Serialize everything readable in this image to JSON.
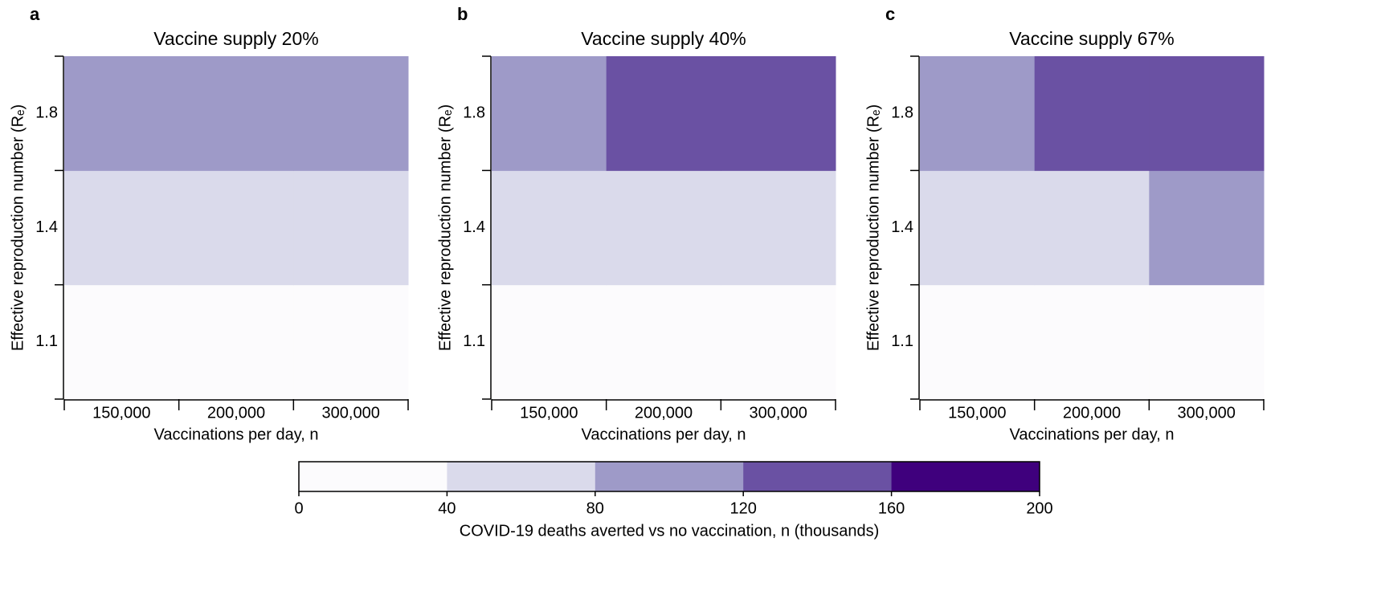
{
  "chart_data": [
    {
      "type": "heatmap",
      "panel": "a",
      "title": "Vaccine supply 20%",
      "xlabel": "Vaccinations per day, n",
      "ylabel": "Effective reproduction number (Rₑ)",
      "x_categories": [
        "150,000",
        "200,000",
        "300,000"
      ],
      "y_categories": [
        "1.1",
        "1.4",
        "1.8"
      ],
      "values": [
        [
          20,
          20,
          20
        ],
        [
          60,
          60,
          60
        ],
        [
          100,
          100,
          100
        ]
      ]
    },
    {
      "type": "heatmap",
      "panel": "b",
      "title": "Vaccine supply 40%",
      "xlabel": "Vaccinations per day, n",
      "ylabel": "Effective reproduction number (Rₑ)",
      "x_categories": [
        "150,000",
        "200,000",
        "300,000"
      ],
      "y_categories": [
        "1.1",
        "1.4",
        "1.8"
      ],
      "values": [
        [
          20,
          20,
          20
        ],
        [
          60,
          60,
          60
        ],
        [
          100,
          140,
          140
        ]
      ]
    },
    {
      "type": "heatmap",
      "panel": "c",
      "title": "Vaccine supply 67%",
      "xlabel": "Vaccinations per day, n",
      "ylabel": "Effective reproduction number (Rₑ)",
      "x_categories": [
        "150,000",
        "200,000",
        "300,000"
      ],
      "y_categories": [
        "1.1",
        "1.4",
        "1.8"
      ],
      "values": [
        [
          20,
          20,
          20
        ],
        [
          60,
          60,
          100
        ],
        [
          100,
          140,
          140
        ]
      ]
    }
  ],
  "colorbar": {
    "label": "COVID-19 deaths averted vs no vaccination, n (thousands)",
    "ticks": [
      0,
      40,
      80,
      120,
      160,
      200
    ],
    "colors": [
      "#fcfbfd",
      "#dadaeb",
      "#9e9ac8",
      "#6a51a3",
      "#3f007d"
    ]
  }
}
